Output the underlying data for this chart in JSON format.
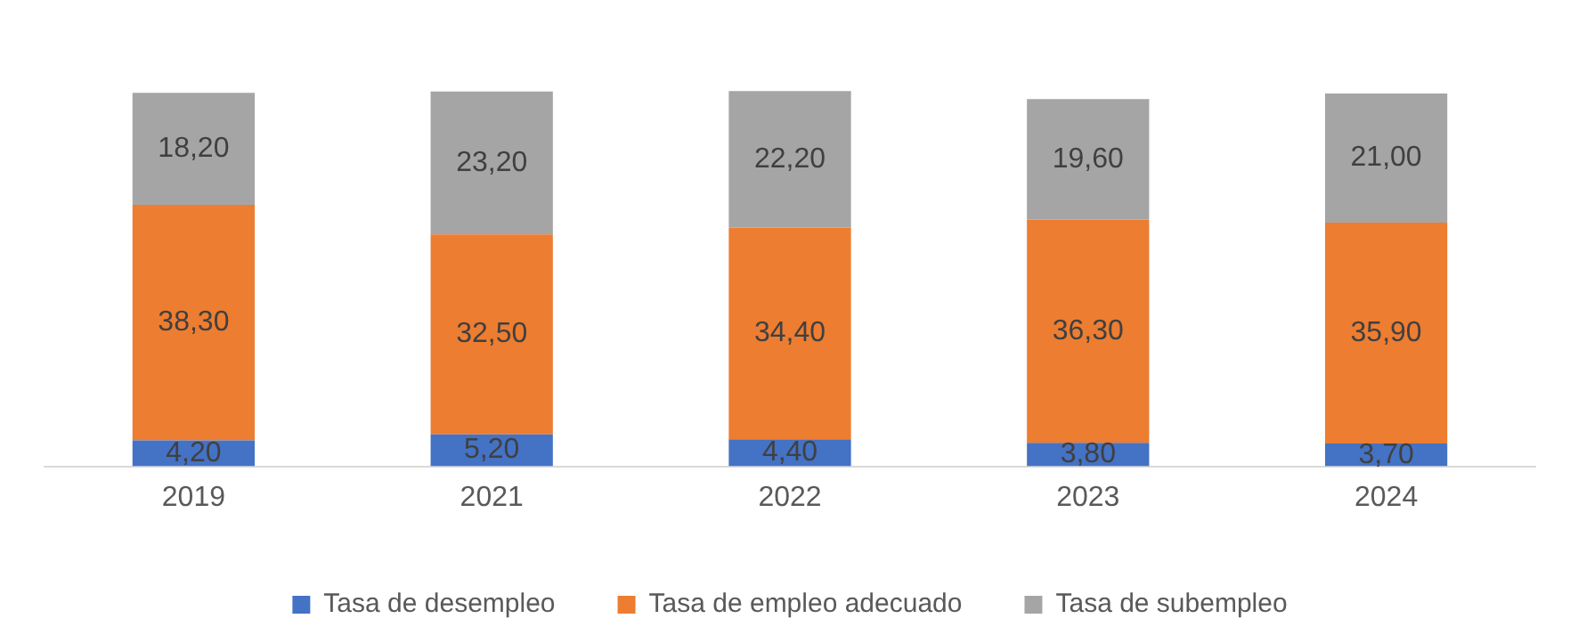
{
  "chart_data": {
    "type": "bar",
    "stacked": true,
    "legend": "bottom",
    "tick_labels": "x",
    "categories": [
      "2019",
      "2021",
      "2022",
      "2023",
      "2024"
    ],
    "series": [
      {
        "name": "Tasa de desempleo",
        "color": "#4472c4",
        "values": [
          4.2,
          5.2,
          4.4,
          3.8,
          3.7
        ],
        "value_labels": [
          "4,20",
          "5,20",
          "4,40",
          "3,80",
          "3,70"
        ]
      },
      {
        "name": "Tasa de empleo adecuado",
        "color": "#ed7d31",
        "values": [
          38.3,
          32.5,
          34.4,
          36.3,
          35.9
        ],
        "value_labels": [
          "38,30",
          "32,50",
          "34,40",
          "36,30",
          "35,90"
        ]
      },
      {
        "name": "Tasa de subempleo",
        "color": "#a5a5a5",
        "values": [
          18.2,
          23.2,
          22.2,
          19.6,
          21.0
        ],
        "value_labels": [
          "18,20",
          "23,20",
          "22,20",
          "19,60",
          "21,00"
        ]
      }
    ]
  }
}
